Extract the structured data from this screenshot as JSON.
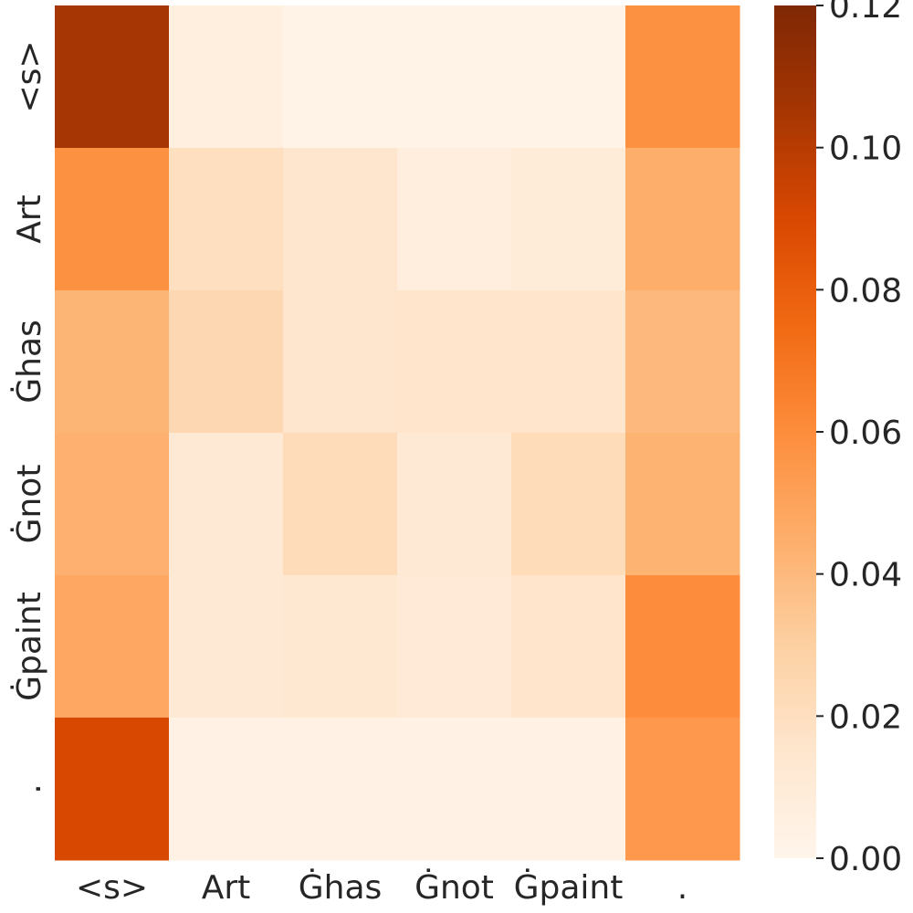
{
  "chart_data": {
    "type": "heatmap",
    "title": "",
    "xlabel": "",
    "ylabel": "",
    "x_labels": [
      "<s>",
      "Art",
      "Ġhas",
      "Ġnot",
      "Ġpaint",
      "."
    ],
    "y_labels": [
      "<s>",
      "Art",
      "Ġhas",
      "Ġnot",
      "Ġpaint",
      "."
    ],
    "values": [
      [
        0.105,
        0.006,
        0.002,
        0.002,
        0.002,
        0.058
      ],
      [
        0.058,
        0.02,
        0.015,
        0.007,
        0.01,
        0.045
      ],
      [
        0.042,
        0.025,
        0.015,
        0.016,
        0.016,
        0.04
      ],
      [
        0.044,
        0.012,
        0.022,
        0.012,
        0.022,
        0.043
      ],
      [
        0.048,
        0.012,
        0.013,
        0.011,
        0.016,
        0.06
      ],
      [
        0.09,
        0.004,
        0.004,
        0.004,
        0.004,
        0.055
      ]
    ],
    "colorbar": {
      "min": 0.0,
      "max": 0.12,
      "ticks": [
        "0.00",
        "0.02",
        "0.04",
        "0.06",
        "0.08",
        "0.10",
        "0.12"
      ],
      "tick_values": [
        0.0,
        0.02,
        0.04,
        0.06,
        0.08,
        0.1,
        0.12
      ]
    },
    "colormap": "Oranges",
    "colormap_stops": [
      "#fff5eb",
      "#fee6ce",
      "#fdd0a2",
      "#fdae6b",
      "#fd8d3c",
      "#f16913",
      "#d94801",
      "#a63603",
      "#7f2704"
    ]
  }
}
